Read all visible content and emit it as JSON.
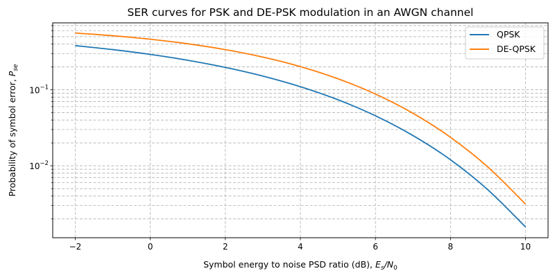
{
  "chart_data": {
    "type": "line",
    "title": "SER curves for PSK and DE-PSK modulation in an AWGN channel",
    "xlabel": "Symbol energy to noise PSD ratio (dB), ",
    "xlabel_math": {
      "base": "E",
      "sub": "s",
      "slash": "/N",
      "sub2": "0"
    },
    "ylabel": "Probability of symbol error, ",
    "ylabel_math": {
      "base": "P",
      "sub": "se"
    },
    "x": [
      -2,
      -1,
      0,
      1,
      2,
      3,
      4,
      5,
      6,
      7,
      8,
      9,
      10
    ],
    "series": [
      {
        "name": "QPSK",
        "color": "#1f77b4",
        "values": [
          0.3814,
          0.3381,
          0.2922,
          0.2447,
          0.1972,
          0.1516,
          0.1098,
          0.074,
          0.0455,
          0.025,
          0.012,
          0.00481,
          0.001566
        ]
      },
      {
        "name": "DE-QPSK",
        "color": "#ff7f0e",
        "values": [
          0.559,
          0.5146,
          0.4628,
          0.4032,
          0.338,
          0.2695,
          0.2019,
          0.1398,
          0.0879,
          0.0491,
          0.0237,
          0.00959,
          0.00313
        ]
      }
    ],
    "xlim": [
      -2.6,
      10.6
    ],
    "ylim": [
      0.00113,
      0.76
    ],
    "yscale": "log",
    "xticks": [
      "−2",
      "0",
      "2",
      "4",
      "6",
      "8",
      "10"
    ],
    "xtick_values": [
      -2,
      0,
      2,
      4,
      6,
      8,
      10
    ],
    "yticks": [
      {
        "base": "10",
        "exp": "−1",
        "value": 0.1
      },
      {
        "base": "10",
        "exp": "−2",
        "value": 0.01
      }
    ],
    "grid": "both major and minor, dashed",
    "legend_position": "top-right"
  }
}
